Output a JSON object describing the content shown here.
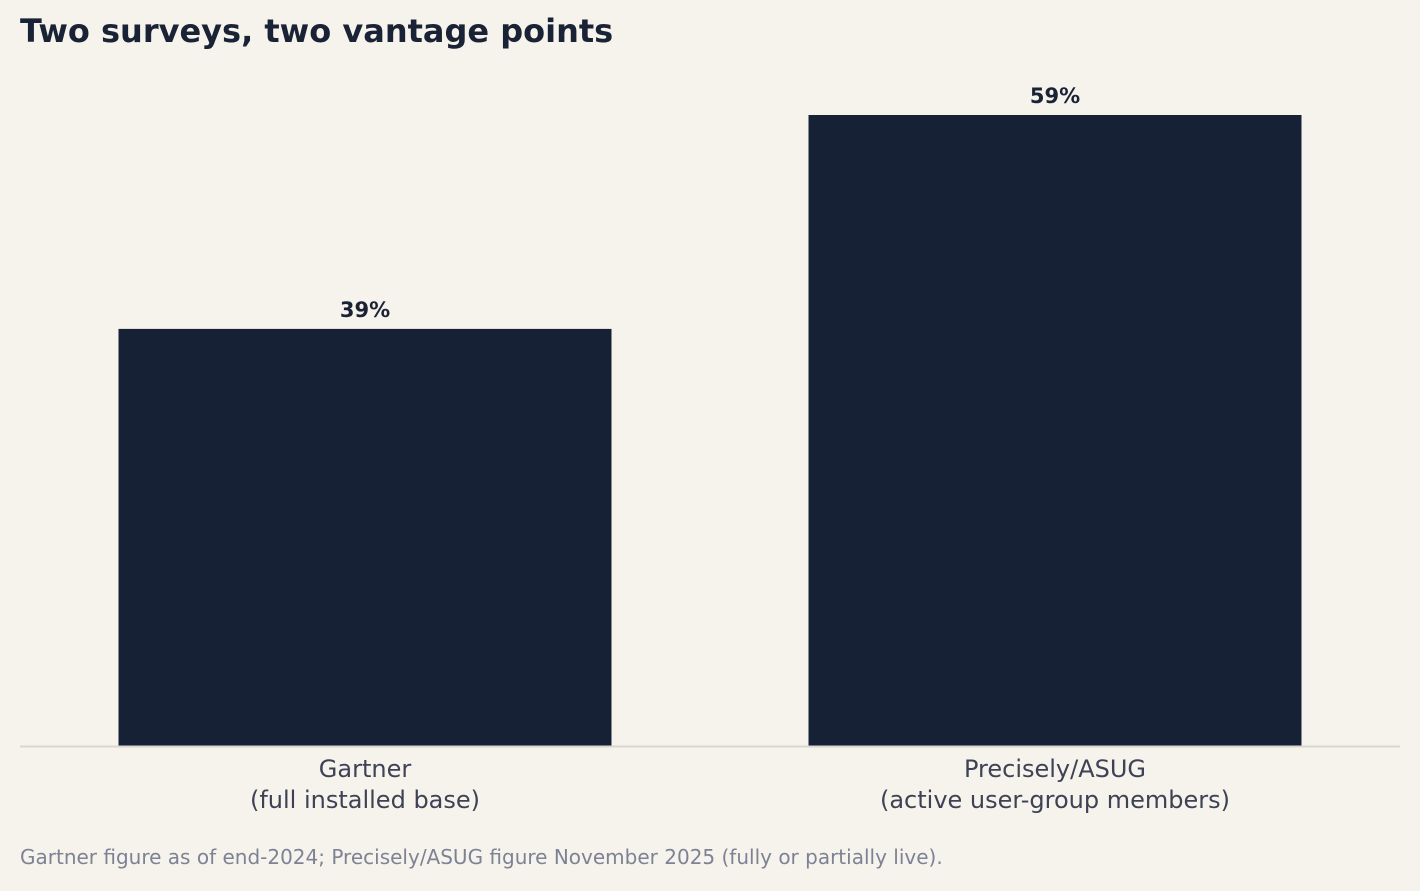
{
  "chart_data": {
    "type": "bar",
    "title": "Two surveys, two vantage points",
    "categories": [
      [
        "Gartner",
        "(full installed base)"
      ],
      [
        "Precisely/ASUG",
        "(active user-group members)"
      ]
    ],
    "values": [
      39,
      59
    ],
    "value_labels": [
      "39%",
      "59%"
    ],
    "unit": "%",
    "xlabel": "",
    "ylabel": "",
    "ylim": [
      0,
      59
    ],
    "grid": false,
    "legend": "none",
    "bar_color": "#162136",
    "axis_color": "#d9d5cf",
    "label_color": "#3d4354"
  },
  "footnote": "Gartner figure as of end-2024; Precisely/ASUG figure November 2025 (fully or partially live)."
}
